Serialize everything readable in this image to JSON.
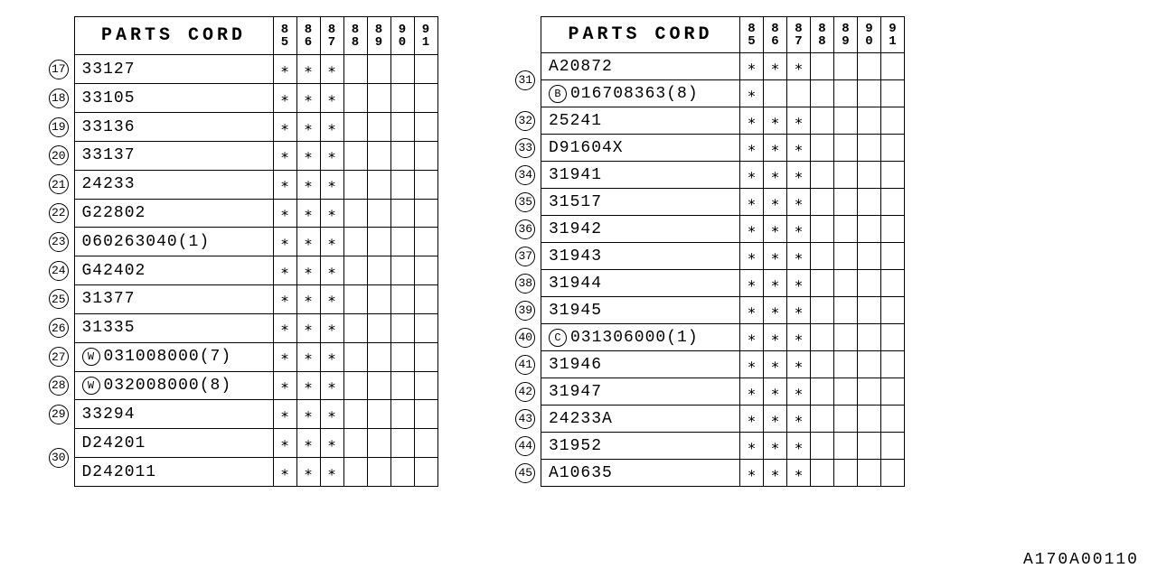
{
  "doc_number": "A170A00110",
  "header_title": "PARTS CORD",
  "years": [
    "85",
    "86",
    "87",
    "88",
    "89",
    "90",
    "91"
  ],
  "star": "∗",
  "left_rows": [
    {
      "id": "17",
      "part": "33127",
      "marks": [
        true,
        true,
        true,
        false,
        false,
        false,
        false
      ]
    },
    {
      "id": "18",
      "part": "33105",
      "marks": [
        true,
        true,
        true,
        false,
        false,
        false,
        false
      ]
    },
    {
      "id": "19",
      "part": "33136",
      "marks": [
        true,
        true,
        true,
        false,
        false,
        false,
        false
      ]
    },
    {
      "id": "20",
      "part": "33137",
      "marks": [
        true,
        true,
        true,
        false,
        false,
        false,
        false
      ]
    },
    {
      "id": "21",
      "part": "24233",
      "marks": [
        true,
        true,
        true,
        false,
        false,
        false,
        false
      ]
    },
    {
      "id": "22",
      "part": "G22802",
      "marks": [
        true,
        true,
        true,
        false,
        false,
        false,
        false
      ]
    },
    {
      "id": "23",
      "part": "060263040(1)",
      "marks": [
        true,
        true,
        true,
        false,
        false,
        false,
        false
      ]
    },
    {
      "id": "24",
      "part": "G42402",
      "marks": [
        true,
        true,
        true,
        false,
        false,
        false,
        false
      ]
    },
    {
      "id": "25",
      "part": "31377",
      "marks": [
        true,
        true,
        true,
        false,
        false,
        false,
        false
      ]
    },
    {
      "id": "26",
      "part": "31335",
      "marks": [
        true,
        true,
        true,
        false,
        false,
        false,
        false
      ]
    },
    {
      "id": "27",
      "prefix": "W",
      "part": "031008000(7)",
      "marks": [
        true,
        true,
        true,
        false,
        false,
        false,
        false
      ]
    },
    {
      "id": "28",
      "prefix": "W",
      "part": "032008000(8)",
      "marks": [
        true,
        true,
        true,
        false,
        false,
        false,
        false
      ]
    },
    {
      "id": "29",
      "part": "33294",
      "marks": [
        true,
        true,
        true,
        false,
        false,
        false,
        false
      ]
    },
    {
      "id": "30",
      "span": 2,
      "part": "D24201",
      "marks": [
        true,
        true,
        true,
        false,
        false,
        false,
        false
      ]
    },
    {
      "part": "D242011",
      "marks": [
        true,
        true,
        true,
        false,
        false,
        false,
        false
      ]
    }
  ],
  "right_rows": [
    {
      "id": "31",
      "span": 2,
      "part": "A20872",
      "marks": [
        true,
        true,
        true,
        false,
        false,
        false,
        false
      ]
    },
    {
      "prefix": "B",
      "part": "016708363(8)",
      "marks": [
        true,
        false,
        false,
        false,
        false,
        false,
        false
      ]
    },
    {
      "id": "32",
      "part": "25241",
      "marks": [
        true,
        true,
        true,
        false,
        false,
        false,
        false
      ]
    },
    {
      "id": "33",
      "part": "D91604X",
      "marks": [
        true,
        true,
        true,
        false,
        false,
        false,
        false
      ]
    },
    {
      "id": "34",
      "part": "31941",
      "marks": [
        true,
        true,
        true,
        false,
        false,
        false,
        false
      ]
    },
    {
      "id": "35",
      "part": "31517",
      "marks": [
        true,
        true,
        true,
        false,
        false,
        false,
        false
      ]
    },
    {
      "id": "36",
      "part": "31942",
      "marks": [
        true,
        true,
        true,
        false,
        false,
        false,
        false
      ]
    },
    {
      "id": "37",
      "part": "31943",
      "marks": [
        true,
        true,
        true,
        false,
        false,
        false,
        false
      ]
    },
    {
      "id": "38",
      "part": "31944",
      "marks": [
        true,
        true,
        true,
        false,
        false,
        false,
        false
      ]
    },
    {
      "id": "39",
      "part": "31945",
      "marks": [
        true,
        true,
        true,
        false,
        false,
        false,
        false
      ]
    },
    {
      "id": "40",
      "prefix": "C",
      "part": "031306000(1)",
      "marks": [
        true,
        true,
        true,
        false,
        false,
        false,
        false
      ]
    },
    {
      "id": "41",
      "part": "31946",
      "marks": [
        true,
        true,
        true,
        false,
        false,
        false,
        false
      ]
    },
    {
      "id": "42",
      "part": "31947",
      "marks": [
        true,
        true,
        true,
        false,
        false,
        false,
        false
      ]
    },
    {
      "id": "43",
      "part": "24233A",
      "marks": [
        true,
        true,
        true,
        false,
        false,
        false,
        false
      ]
    },
    {
      "id": "44",
      "part": "31952",
      "marks": [
        true,
        true,
        true,
        false,
        false,
        false,
        false
      ]
    },
    {
      "id": "45",
      "part": "A10635",
      "marks": [
        true,
        true,
        true,
        false,
        false,
        false,
        false
      ]
    }
  ]
}
